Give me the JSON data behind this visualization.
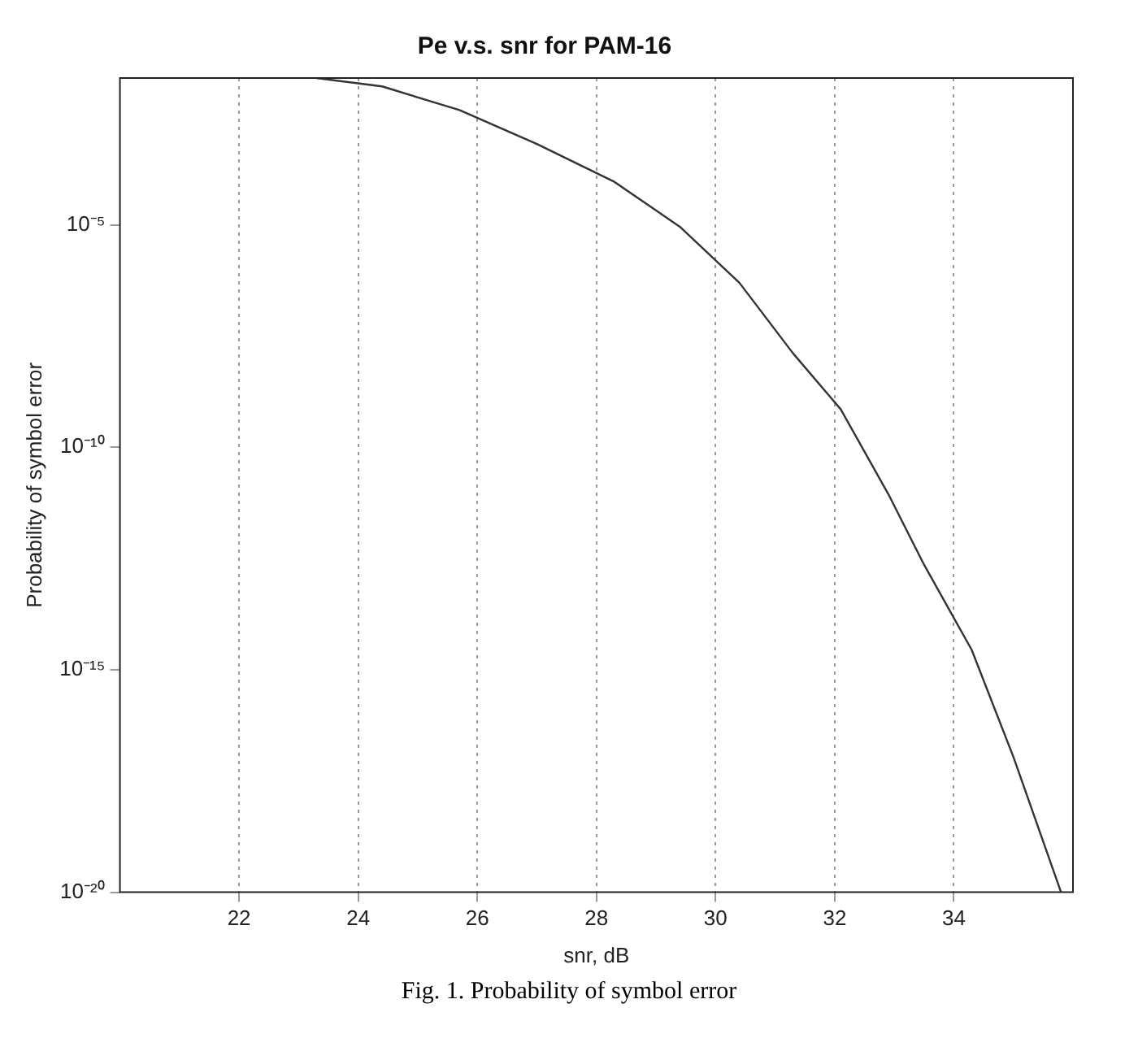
{
  "chart_data": {
    "type": "line",
    "title": "Pe v.s. snr for PAM-16",
    "xlabel": "snr, dB",
    "ylabel": "Probability of symbol error",
    "annotations": [
      "Fig. 1. Probability of symbol error"
    ],
    "log": "y",
    "grid": "x",
    "legend": false,
    "marker": "none",
    "line_style": "solid",
    "xlim": [
      20,
      36
    ],
    "xticks": [
      22,
      24,
      26,
      28,
      30,
      32,
      34
    ],
    "ylim": [
      1e-20,
      0.02
    ],
    "yticks": [
      {
        "value": 1e-20,
        "label": "10⁻²⁰"
      },
      {
        "value": 1e-15,
        "label": "10⁻¹⁵"
      },
      {
        "value": 1e-10,
        "label": "10⁻¹⁰"
      },
      {
        "value": 1e-05,
        "label": "10⁻⁵"
      }
    ],
    "series": [
      {
        "color": "#333333",
        "x": [
          23.3,
          24.4,
          25.7,
          27.0,
          28.3,
          29.4,
          30.4,
          31.3,
          32.1,
          32.9,
          33.5,
          34.3,
          35.0,
          35.8
        ],
        "values": [
          0.02,
          0.013,
          0.0038,
          0.00066,
          9.3e-05,
          9.1e-06,
          5e-07,
          1.3e-08,
          7.2e-10,
          8.9e-12,
          2.3e-13,
          2.8e-15,
          1.1e-17,
          1e-20
        ]
      }
    ]
  }
}
